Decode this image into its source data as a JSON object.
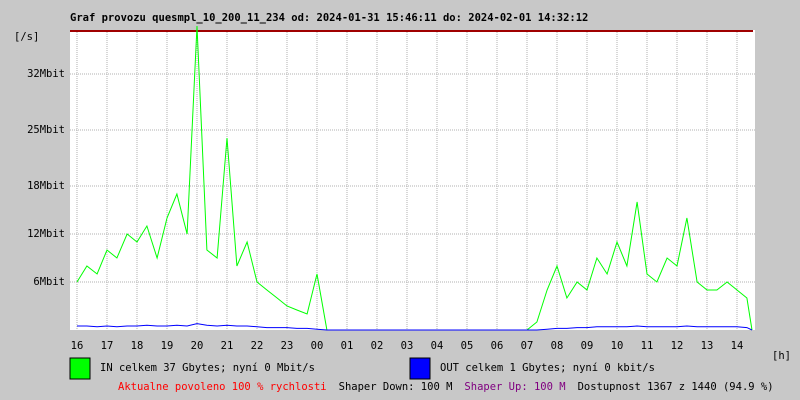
{
  "chart_data": {
    "type": "line",
    "title": "Graf provozu quesmpl_10_200_11_234 od: 2024-01-31 15:46:11 do: 2024-02-01 14:32:12",
    "y_label": "[/s]",
    "x_label": "[h]",
    "x": [
      16,
      16.33,
      16.67,
      17,
      17.33,
      17.67,
      18,
      18.33,
      18.67,
      19,
      19.33,
      19.67,
      20,
      20.33,
      20.67,
      21,
      21.33,
      21.67,
      22,
      22.33,
      22.67,
      23,
      23.33,
      23.67,
      24,
      24.33,
      24.67,
      25,
      25.33,
      25.67,
      26,
      26.33,
      26.67,
      27,
      27.33,
      27.67,
      28,
      28.33,
      28.67,
      29,
      29.33,
      29.67,
      30,
      30.33,
      30.67,
      31,
      31.33,
      31.67,
      32,
      32.33,
      32.67,
      33,
      33.33,
      33.67,
      34,
      34.33,
      34.67,
      35,
      35.33,
      35.67,
      36,
      36.33,
      36.67,
      37,
      37.33,
      37.67,
      38,
      38.33,
      38.5
    ],
    "series": [
      {
        "name": "IN celkem 37 Gbytes; nyní 0 Mbit/s",
        "color": "#00ff00",
        "values": [
          6,
          8,
          7,
          10,
          9,
          12,
          11,
          13,
          9,
          14,
          17,
          12,
          38,
          10,
          9,
          24,
          8,
          11,
          6,
          5,
          4,
          3,
          2.5,
          2,
          7,
          0,
          0,
          0,
          0,
          0,
          0,
          0,
          0,
          0,
          0,
          0,
          0,
          0,
          0,
          0,
          0,
          0,
          0,
          0,
          0,
          0,
          1,
          5,
          8,
          4,
          6,
          5,
          9,
          7,
          11,
          8,
          16,
          7,
          6,
          9,
          8,
          14,
          6,
          5,
          5,
          6,
          5,
          4,
          0
        ]
      },
      {
        "name": "OUT celkem 1 Gbytes; nyní 0 kbit/s",
        "color": "#0000ff",
        "values": [
          0.5,
          0.5,
          0.4,
          0.5,
          0.4,
          0.5,
          0.5,
          0.6,
          0.5,
          0.5,
          0.6,
          0.5,
          0.8,
          0.6,
          0.5,
          0.6,
          0.5,
          0.5,
          0.4,
          0.3,
          0.3,
          0.3,
          0.2,
          0.2,
          0.1,
          0,
          0,
          0,
          0,
          0,
          0,
          0,
          0,
          0,
          0,
          0,
          0,
          0,
          0,
          0,
          0,
          0,
          0,
          0,
          0,
          0,
          0,
          0.1,
          0.2,
          0.2,
          0.3,
          0.3,
          0.4,
          0.4,
          0.4,
          0.4,
          0.5,
          0.4,
          0.4,
          0.4,
          0.4,
          0.5,
          0.4,
          0.4,
          0.4,
          0.4,
          0.4,
          0.3,
          0
        ]
      }
    ],
    "xlim": [
      15.767,
      38.6
    ],
    "xticks": [
      16,
      17,
      18,
      19,
      20,
      21,
      22,
      23,
      {
        "value": 24,
        "label": "00"
      },
      {
        "value": 25,
        "label": "01"
      },
      {
        "value": 26,
        "label": "02"
      },
      {
        "value": 27,
        "label": "03"
      },
      {
        "value": 28,
        "label": "04"
      },
      {
        "value": 29,
        "label": "05"
      },
      {
        "value": 30,
        "label": "06"
      },
      {
        "value": 31,
        "label": "07"
      },
      {
        "value": 32,
        "label": "08"
      },
      {
        "value": 33,
        "label": "09"
      },
      {
        "value": 34,
        "label": "10"
      },
      {
        "value": 35,
        "label": "11"
      },
      {
        "value": 36,
        "label": "12"
      },
      {
        "value": 37,
        "label": "13"
      },
      {
        "value": 38,
        "label": "14"
      }
    ],
    "ylim": [
      0,
      37.5
    ],
    "yticks": [
      {
        "value": 6,
        "label": "6Mbit"
      },
      {
        "value": 12,
        "label": "12Mbit"
      },
      {
        "value": 18,
        "label": "18Mbit"
      },
      {
        "value": 25,
        "label": "25Mbit"
      },
      {
        "value": 32,
        "label": "32Mbit"
      }
    ],
    "grid": true,
    "footer": [
      {
        "text": "Aktualne povoleno 100 % rychlosti",
        "color": "#ff0000"
      },
      {
        "text": "Shaper Down: 100 M",
        "color": "#000000"
      },
      {
        "text": "Shaper Up: 100 M",
        "color": "#800080"
      },
      {
        "text": "Dostupnost 1367 z 1440 (94.9 %)",
        "color": "#000000"
      }
    ]
  }
}
